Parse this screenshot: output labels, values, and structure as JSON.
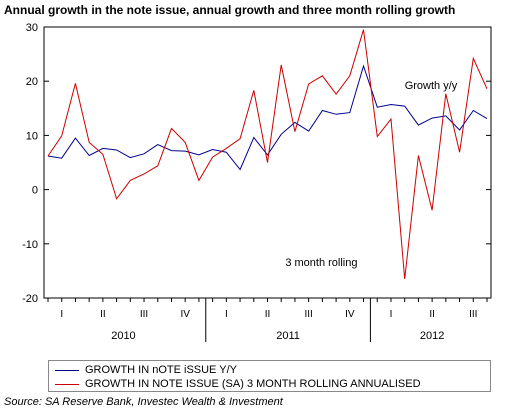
{
  "chart_data": {
    "type": "line",
    "title": "Annual growth in the note issue, annual growth and three month rolling growth",
    "xlabel": "",
    "ylabel": "",
    "ylim": [
      -20,
      30
    ],
    "yticks": [
      30,
      20,
      10,
      0,
      -10,
      -20
    ],
    "x_quarter_labels": [
      "I",
      "II",
      "III",
      "IV",
      "I",
      "II",
      "III",
      "IV",
      "I",
      "II",
      "III"
    ],
    "x_year_labels": [
      "2010",
      "2011",
      "2012"
    ],
    "grid": false,
    "legend_position": "bottom",
    "series": [
      {
        "name": "GROWTH IN nOTE iSSUE Y/Y",
        "color": "#00008b",
        "values": [
          6.2,
          5.8,
          9.5,
          6.3,
          7.6,
          7.3,
          5.9,
          6.6,
          8.3,
          7.2,
          7.1,
          6.4,
          7.4,
          6.9,
          3.7,
          9.6,
          6.4,
          10.2,
          12.4,
          10.8,
          14.6,
          13.9,
          14.2,
          22.8,
          15.2,
          15.7,
          15.4,
          11.9,
          13.2,
          13.6,
          11.0,
          14.6,
          13.1
        ]
      },
      {
        "name": "GROWTH IN NOTE ISSUE (SA) 3 MONTH ROLLING ANNUALISED",
        "color": "#cc0000",
        "values": [
          6.2,
          9.9,
          19.6,
          8.7,
          6.5,
          -1.7,
          1.7,
          2.9,
          4.4,
          11.3,
          8.7,
          1.7,
          6.0,
          7.6,
          9.4,
          18.3,
          5.0,
          23.0,
          10.7,
          19.5,
          21.0,
          17.6,
          21.0,
          29.5,
          9.8,
          13.0,
          -16.5,
          6.3,
          -3.8,
          17.7,
          6.9,
          24.2,
          18.6
        ]
      }
    ],
    "annotations": [
      "Growth y/y",
      "3 month rolling"
    ]
  },
  "source_text": "Source: SA Reserve Bank, Investec Wealth & Investment"
}
